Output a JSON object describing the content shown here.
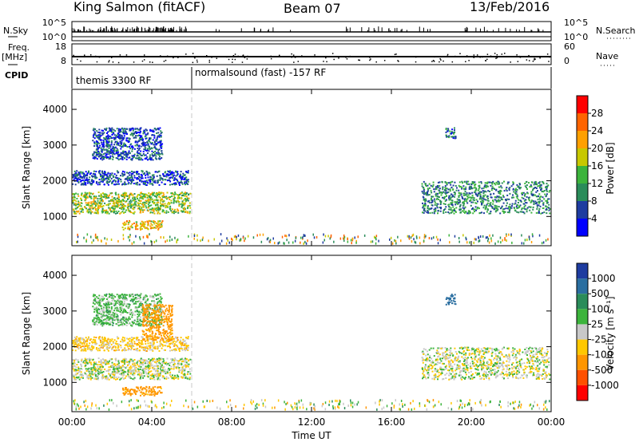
{
  "header": {
    "station": "King Salmon (fitACF)",
    "beam": "Beam 07",
    "date": "13/Feb/2016"
  },
  "side_labels": {
    "nsky": "N.Sky",
    "freq": "Freq.",
    "freq_unit": "[MHz]",
    "cpid": "CPID",
    "nsearch": "N.Search",
    "nave": "Nave"
  },
  "strip_axes": {
    "nsky_ticks": [
      "10^5",
      "10^0"
    ],
    "nsearch_ticks": [
      "10^5",
      "10^0"
    ],
    "freq_ticks": [
      "18",
      "8"
    ],
    "nave_ticks": [
      "60",
      "0"
    ]
  },
  "cpid_segments": [
    {
      "label": "themis 3300 RF",
      "start_hour": 0,
      "end_hour": 6
    },
    {
      "label": "normalsound (fast) -157 RF",
      "start_hour": 6,
      "end_hour": 24
    }
  ],
  "colors": {
    "power": [
      "#0000ff",
      "#1e3ca0",
      "#2a8c5a",
      "#3cb43c",
      "#c8c800",
      "#ffa000",
      "#ff6400",
      "#ff0000"
    ],
    "velocity": [
      "#1e3ca0",
      "#2a6ea0",
      "#2a8c5a",
      "#3cb43c",
      "#c8c8c8",
      "#ffc800",
      "#ff9600",
      "#ff5000",
      "#ff0000"
    ]
  },
  "chart_data": [
    {
      "type": "heatmap",
      "name": "Power",
      "ylabel": "Slant Range [km]",
      "xlabel": "Time UT",
      "x_ticks": [
        "00:00",
        "04:00",
        "08:00",
        "12:00",
        "16:00",
        "20:00",
        "00:00"
      ],
      "x_range_hours": [
        0,
        24
      ],
      "y_ticks": [
        1000,
        2000,
        3000,
        4000
      ],
      "y_range_km": [
        180,
        4560
      ],
      "colorbar": {
        "label": "Power [dB]",
        "ticks": [
          4,
          8,
          12,
          16,
          20,
          24,
          28
        ],
        "range": [
          0,
          32
        ]
      },
      "scatter_regions": [
        {
          "t0": 0.0,
          "t1": 5.9,
          "r0": 1100,
          "r1": 1700,
          "value": 16
        },
        {
          "t0": 0.0,
          "t1": 5.8,
          "r0": 1900,
          "r1": 2300,
          "value": 6
        },
        {
          "t0": 1.0,
          "t1": 4.5,
          "r0": 2600,
          "r1": 3500,
          "value": 6
        },
        {
          "t0": 2.5,
          "t1": 4.5,
          "r0": 650,
          "r1": 900,
          "value": 20
        },
        {
          "t0": 17.5,
          "t1": 23.9,
          "r0": 1100,
          "r1": 2000,
          "value": 10
        },
        {
          "t0": 18.7,
          "t1": 19.2,
          "r0": 3200,
          "r1": 3500,
          "value": 8
        }
      ]
    },
    {
      "type": "heatmap",
      "name": "Velocity",
      "ylabel": "Slant Range [km]",
      "xlabel": "Time UT",
      "x_ticks": [
        "00:00",
        "04:00",
        "08:00",
        "12:00",
        "16:00",
        "20:00",
        "00:00"
      ],
      "x_range_hours": [
        0,
        24
      ],
      "y_ticks": [
        1000,
        2000,
        3000,
        4000
      ],
      "y_range_km": [
        180,
        4560
      ],
      "colorbar": {
        "label": "Velocity [m s⁻¹]",
        "ticks": [
          "1000",
          "500",
          "100",
          "25",
          "-25",
          "-100",
          "-500",
          "-1000"
        ]
      },
      "scatter_regions": [
        {
          "t0": 0.0,
          "t1": 5.9,
          "r0": 1100,
          "r1": 1700,
          "value": 0
        },
        {
          "t0": 0.0,
          "t1": 5.8,
          "r0": 1900,
          "r1": 2300,
          "value": -50
        },
        {
          "t0": 1.0,
          "t1": 4.5,
          "r0": 2600,
          "r1": 3500,
          "value": 50
        },
        {
          "t0": 3.5,
          "t1": 5.0,
          "r0": 2200,
          "r1": 3200,
          "value": -150
        },
        {
          "t0": 2.5,
          "t1": 4.5,
          "r0": 650,
          "r1": 900,
          "value": -150
        },
        {
          "t0": 17.5,
          "t1": 23.9,
          "r0": 1100,
          "r1": 2000,
          "value": 0
        },
        {
          "t0": 18.7,
          "t1": 19.2,
          "r0": 3200,
          "r1": 3500,
          "value": 600
        }
      ]
    }
  ]
}
